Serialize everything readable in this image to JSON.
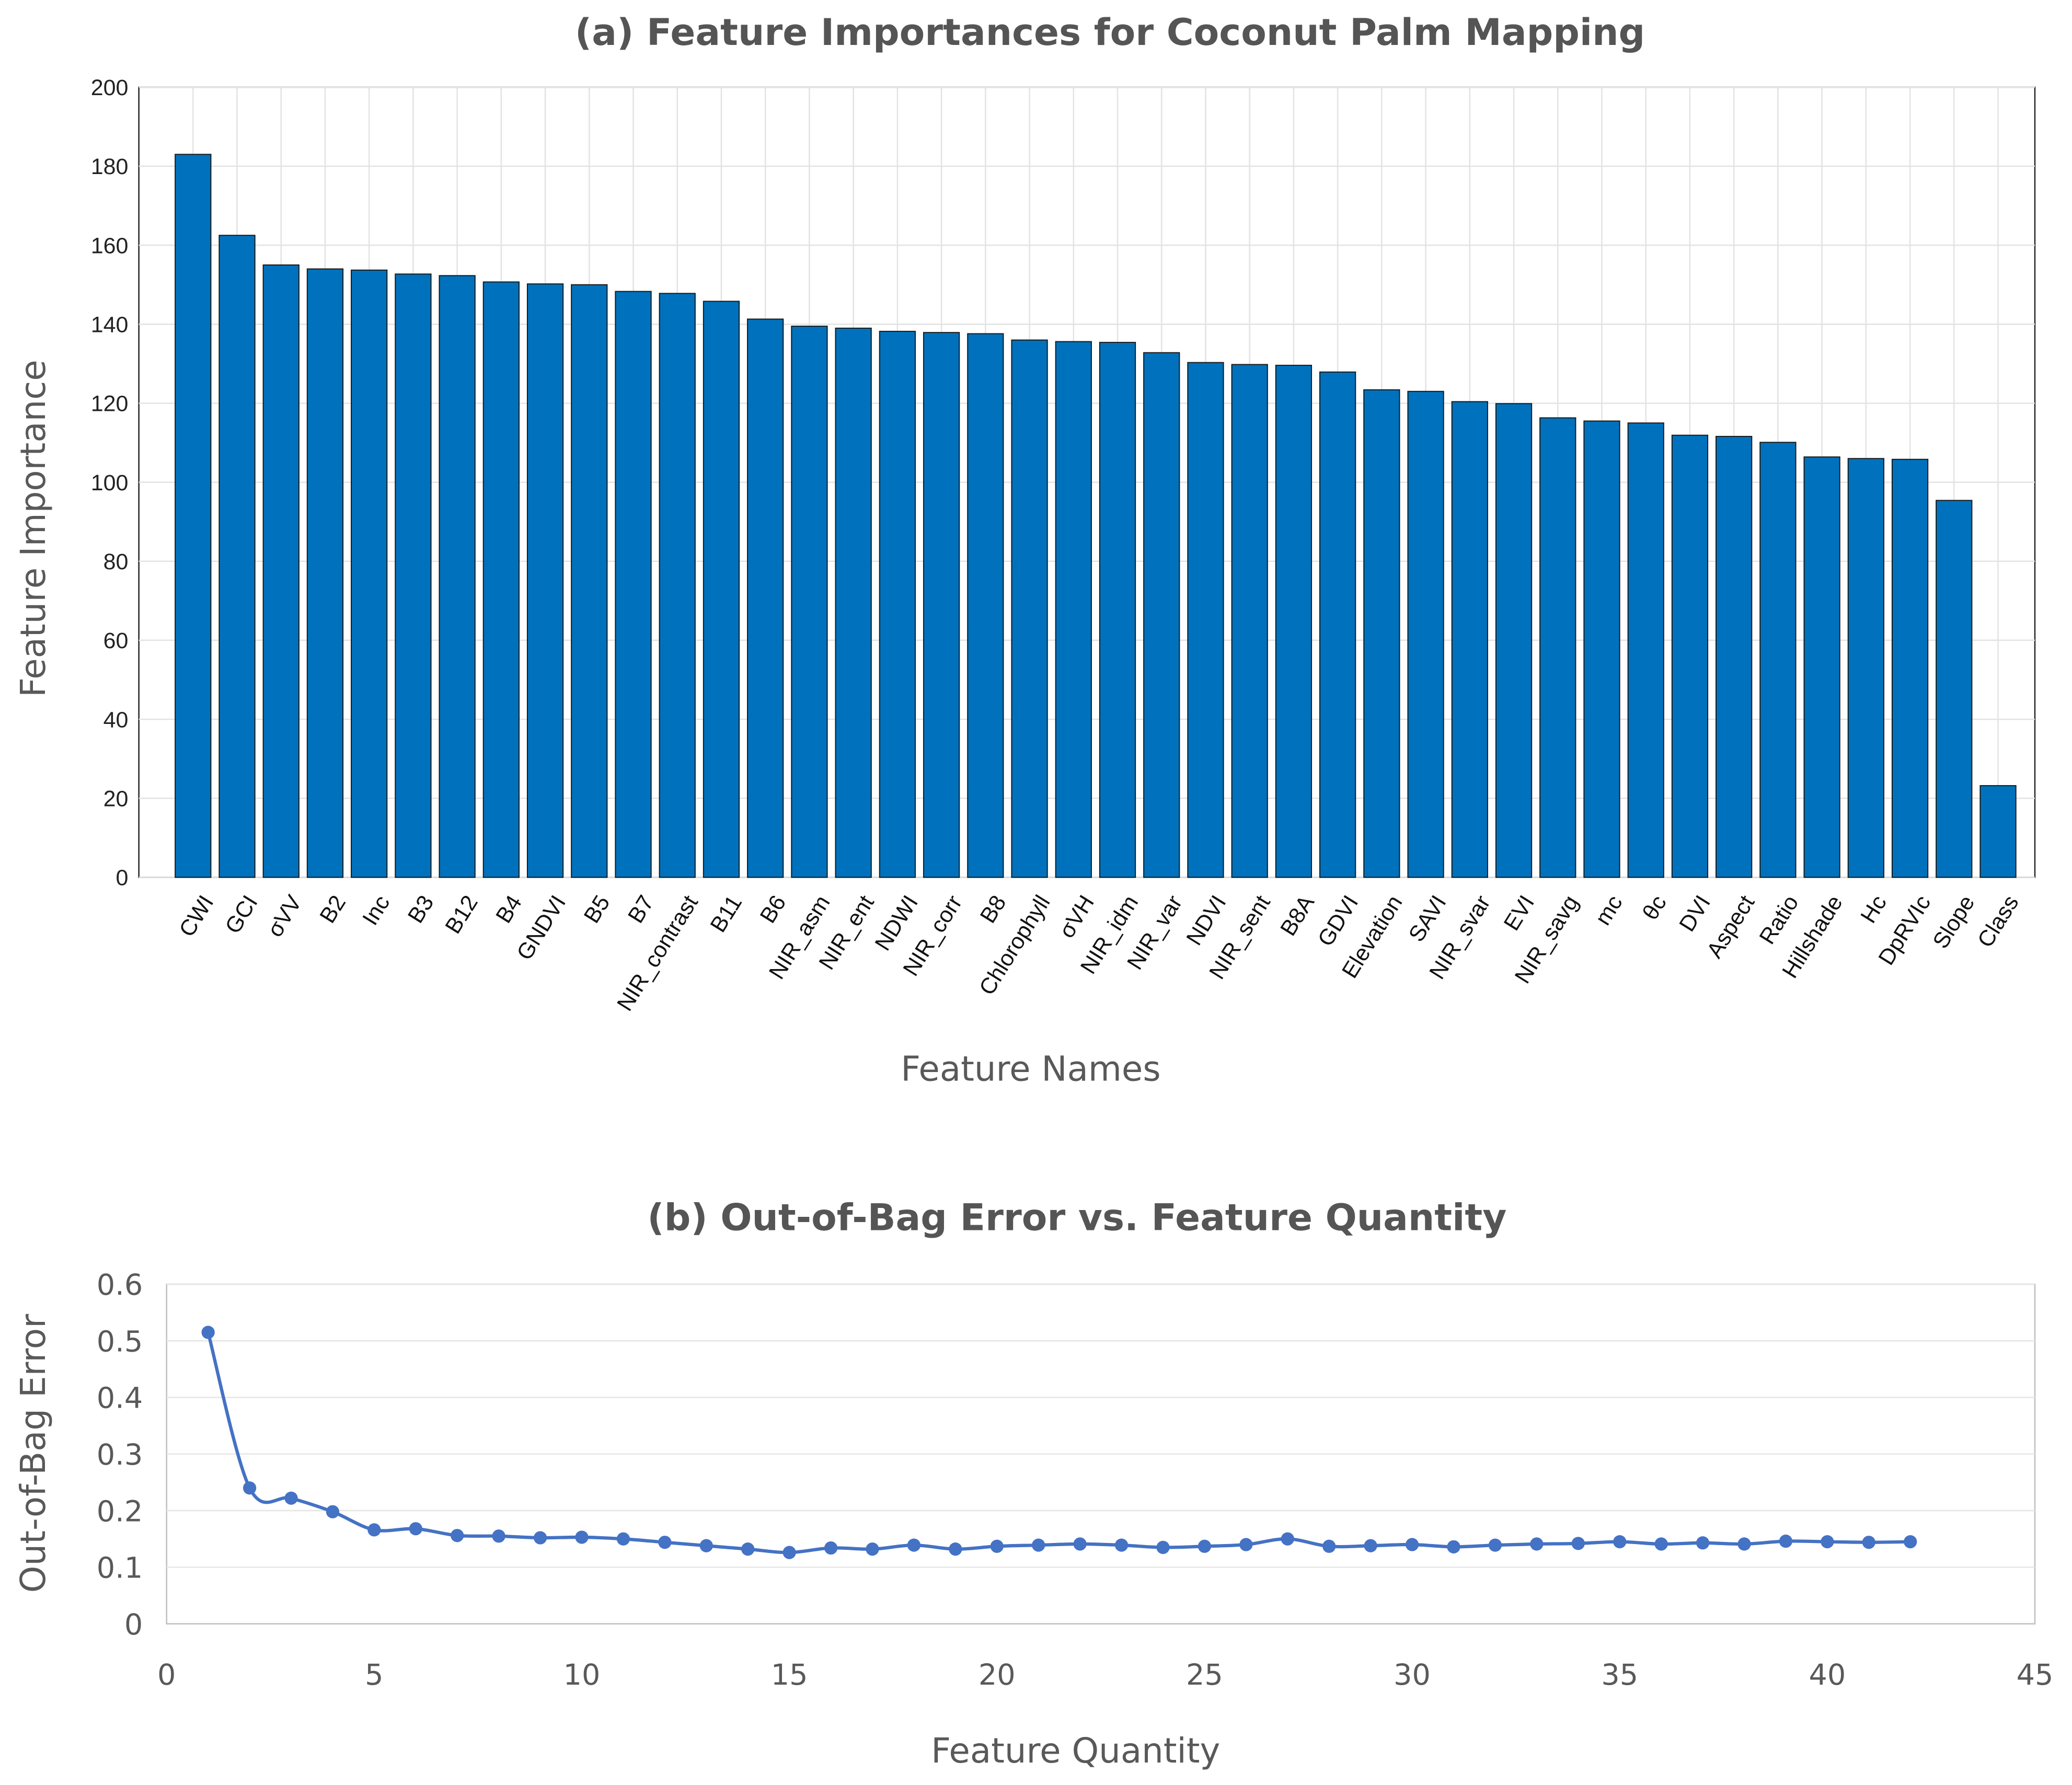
{
  "chart_data": [
    {
      "type": "bar",
      "title": "(a) Feature Importances for Coconut Palm Mapping",
      "xlabel": "Feature Names",
      "ylabel": "Feature Importance",
      "ylim": [
        0,
        200
      ],
      "yticks": [
        0,
        20,
        40,
        60,
        80,
        100,
        120,
        140,
        160,
        180,
        200
      ],
      "grid": true,
      "bar_color": "#0072BD",
      "categories": [
        "CWI",
        "GCI",
        "σVV",
        "B2",
        "Inc",
        "B3",
        "B12",
        "B4",
        "GNDVI",
        "B5",
        "B7",
        "NIR_contrast",
        "B11",
        "B6",
        "NIR_asm",
        "NIR_ent",
        "NDWI",
        "NIR_corr",
        "B8",
        "Chlorophyll",
        "σVH",
        "NIR_idm",
        "NIR_var",
        "NDVI",
        "NIR_sent",
        "B8A",
        "GDVI",
        "Elevation",
        "SAVI",
        "NIR_svar",
        "EVI",
        "NIR_savg",
        "mc",
        "θc",
        "DVI",
        "Aspect",
        "Ratio",
        "Hillshade",
        "Hc",
        "DpRVIc",
        "Slope",
        "Class"
      ],
      "values": [
        183,
        162.5,
        155,
        154,
        153.7,
        152.7,
        152.3,
        150.7,
        150.2,
        150,
        148.3,
        147.8,
        145.8,
        141.3,
        139.5,
        139,
        138.2,
        137.9,
        137.6,
        136,
        135.6,
        135.4,
        132.8,
        130.3,
        129.8,
        129.6,
        127.9,
        123.4,
        123,
        120.4,
        119.9,
        116.3,
        115.5,
        115,
        111.9,
        111.6,
        110.1,
        106.4,
        106,
        105.8,
        95.4,
        23.2
      ]
    },
    {
      "type": "line",
      "title": "(b) Out-of-Bag Error vs. Feature Quantity",
      "xlabel": "Feature Quantity",
      "ylabel": "Out-of-Bag Error",
      "xlim": [
        0,
        45
      ],
      "ylim": [
        0,
        0.6
      ],
      "xticks": [
        0,
        5,
        10,
        15,
        20,
        25,
        30,
        35,
        40,
        45
      ],
      "yticks": [
        0,
        0.1,
        0.2,
        0.3,
        0.4,
        0.5,
        0.6
      ],
      "grid": true,
      "line_color": "#4472C4",
      "x": [
        1,
        2,
        3,
        4,
        5,
        6,
        7,
        8,
        9,
        10,
        11,
        12,
        13,
        14,
        15,
        16,
        17,
        18,
        19,
        20,
        21,
        22,
        23,
        24,
        25,
        26,
        27,
        28,
        29,
        30,
        31,
        32,
        33,
        34,
        35,
        36,
        37,
        38,
        39,
        40,
        41,
        42
      ],
      "y": [
        0.515,
        0.24,
        0.222,
        0.198,
        0.166,
        0.168,
        0.156,
        0.155,
        0.152,
        0.153,
        0.15,
        0.144,
        0.138,
        0.132,
        0.126,
        0.134,
        0.132,
        0.139,
        0.132,
        0.137,
        0.139,
        0.141,
        0.139,
        0.135,
        0.137,
        0.14,
        0.15,
        0.137,
        0.138,
        0.14,
        0.136,
        0.139,
        0.141,
        0.142,
        0.145,
        0.141,
        0.143,
        0.141,
        0.146,
        0.145,
        0.144,
        0.145
      ]
    }
  ]
}
